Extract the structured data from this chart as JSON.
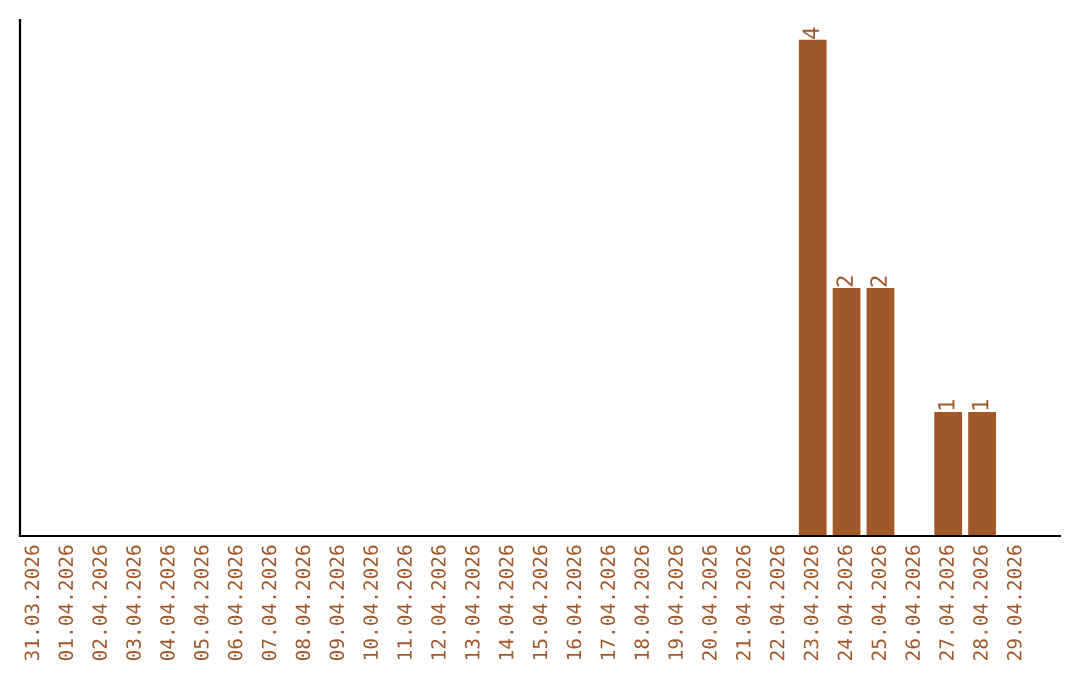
{
  "chart_data": {
    "type": "bar",
    "categories": [
      "31.03.2026",
      "01.04.2026",
      "02.04.2026",
      "03.04.2026",
      "04.04.2026",
      "05.04.2026",
      "06.04.2026",
      "07.04.2026",
      "08.04.2026",
      "09.04.2026",
      "10.04.2026",
      "11.04.2026",
      "12.04.2026",
      "13.04.2026",
      "14.04.2026",
      "15.04.2026",
      "16.04.2026",
      "17.04.2026",
      "18.04.2026",
      "19.04.2026",
      "20.04.2026",
      "21.04.2026",
      "22.04.2026",
      "23.04.2026",
      "24.04.2026",
      "25.04.2026",
      "26.04.2026",
      "27.04.2026",
      "28.04.2026",
      "29.04.2026"
    ],
    "values": [
      null,
      null,
      null,
      null,
      null,
      null,
      null,
      null,
      null,
      null,
      null,
      null,
      null,
      null,
      null,
      null,
      null,
      null,
      null,
      null,
      null,
      null,
      null,
      4,
      2,
      2,
      null,
      1,
      1,
      null
    ],
    "data_labels": true,
    "color": "#a0572a",
    "grid": false,
    "legend": false
  }
}
